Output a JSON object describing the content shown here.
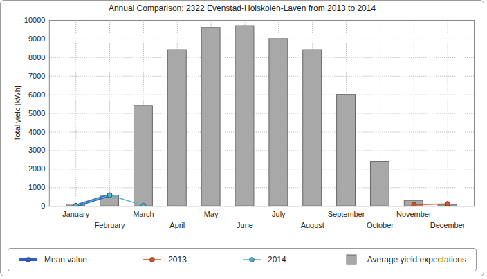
{
  "chart_data": {
    "type": "bar",
    "title": "Annual Comparison: 2322 Evenstad-Hoiskolen-Laven from 2013 to 2014",
    "y_label": "Total yield [kWh]",
    "categories": [
      "January",
      "February",
      "March",
      "April",
      "May",
      "June",
      "July",
      "August",
      "September",
      "October",
      "November",
      "December"
    ],
    "series": [
      {
        "name": "Mean value",
        "type": "line",
        "color": "#2d5fc4",
        "marker": "circle",
        "line_style": "thick",
        "values": [
          30,
          600,
          null,
          null,
          null,
          null,
          null,
          null,
          null,
          null,
          null,
          130
        ]
      },
      {
        "name": "2013",
        "type": "line",
        "color": "#d4501e",
        "marker": "circle",
        "line_style": "solid",
        "values": [
          null,
          null,
          null,
          null,
          null,
          null,
          null,
          null,
          null,
          null,
          80,
          130
        ]
      },
      {
        "name": "2014",
        "type": "line",
        "color": "#4db3c9",
        "marker": "circle",
        "line_style": "solid",
        "values": [
          30,
          600,
          40,
          null,
          null,
          null,
          null,
          null,
          null,
          null,
          null,
          null
        ]
      },
      {
        "name": "Average yield expectations",
        "type": "bar",
        "color": "#a8a8a8",
        "values": [
          100,
          580,
          5400,
          8400,
          9600,
          9700,
          9000,
          8400,
          6000,
          2400,
          300,
          80
        ]
      }
    ],
    "ylim": [
      0,
      10000
    ],
    "yticks": [
      0,
      1000,
      2000,
      3000,
      4000,
      5000,
      6000,
      7000,
      8000,
      9000,
      10000
    ],
    "grid": true,
    "legend": "bottom"
  }
}
